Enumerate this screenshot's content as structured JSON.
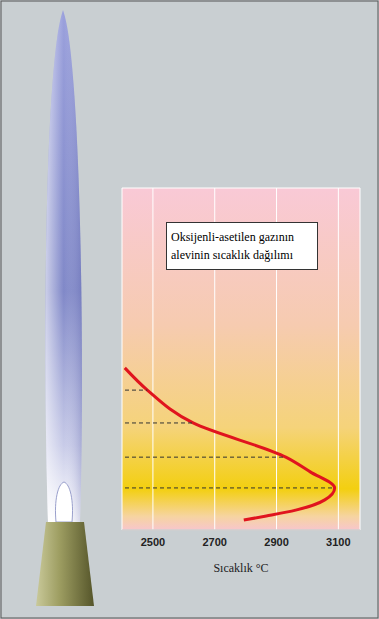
{
  "chart_data": {
    "type": "line",
    "title": "Oksijenli-asetilen gazının alevinin sıcaklık dağılımı",
    "x_label": "Sıcaklık °C",
    "x": [
      2409,
      2482,
      2630,
      2930,
      3009,
      3088,
      3056,
      2962,
      2867,
      2794
    ],
    "values": [
      47.4,
      40.9,
      31.3,
      21.3,
      17,
      12.3,
      8.8,
      5.8,
      4.1,
      2.9
    ],
    "dashed": [
      false,
      true,
      true,
      true,
      false,
      true,
      false,
      false,
      false,
      false
    ],
    "color": "#e0141e",
    "xlim": [
      2400,
      3170
    ],
    "xticks": [
      2500,
      2700,
      2900,
      3100
    ],
    "ylim": [
      0,
      100
    ],
    "yticks": [
      0,
      10,
      20,
      30,
      40,
      50,
      60,
      70,
      80,
      90,
      100
    ],
    "grid": true,
    "tick_labels": "x"
  }
}
